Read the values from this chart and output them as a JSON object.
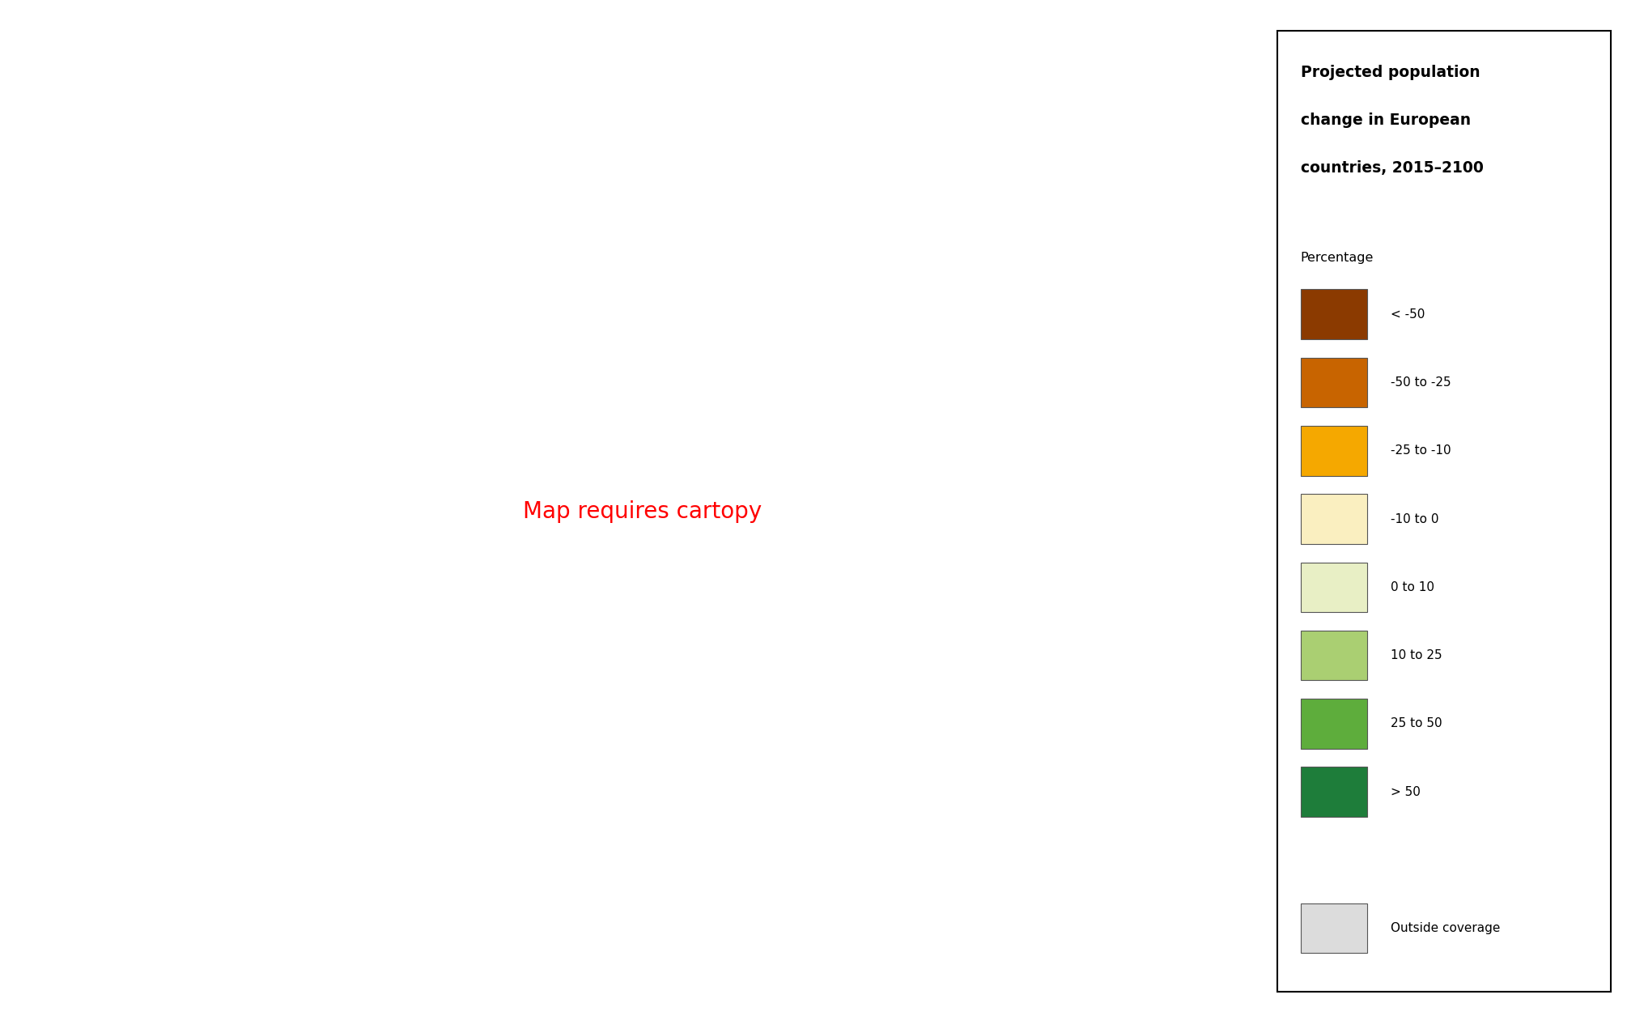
{
  "title_line1": "Projected population",
  "title_line2": "change in European",
  "title_line3": "countries, 2015–2100",
  "legend_title": "Percentage",
  "legend_categories": [
    {
      "label": "< -50",
      "color": "#8B3A00"
    },
    {
      "label": "-50 to -25",
      "color": "#C86400"
    },
    {
      "label": "-25 to -10",
      "color": "#F5A800"
    },
    {
      "label": "-10 to 0",
      "color": "#FAEFC0"
    },
    {
      "label": "0 to 10",
      "color": "#E8EFC5"
    },
    {
      "label": "10 to 25",
      "color": "#AACF72"
    },
    {
      "label": "25 to 50",
      "color": "#5EAD3C"
    },
    {
      "label": "> 50",
      "color": "#1E7D3A"
    }
  ],
  "outside_coverage_color": "#DCDCDC",
  "ocean_color": "#C8E8F0",
  "land_default_color": "#E8E8E8",
  "country_colors": {
    "Norway": "#1E7D3A",
    "Sweden": "#FAEFC0",
    "Finland": "#FAEFC0",
    "Iceland": "#AACF72",
    "Denmark": "#5EAD3C",
    "United Kingdom": "#5EAD3C",
    "Ireland": "#5EAD3C",
    "Netherlands": "#AACF72",
    "Belgium": "#AACF72",
    "Luxembourg": "#5EAD3C",
    "France": "#AACF72",
    "Germany": "#F5A800",
    "Switzerland": "#5EAD3C",
    "Austria": "#FAEFC0",
    "Portugal": "#8B3A00",
    "Spain": "#F5A800",
    "Italy": "#F5A800",
    "Malta": "#F5A800",
    "Poland": "#8B3A00",
    "Czechia": "#C86400",
    "Czech Republic": "#C86400",
    "Slovakia": "#C86400",
    "Hungary": "#C86400",
    "Romania": "#C86400",
    "Bulgaria": "#8B3A00",
    "Serbia": "#C86400",
    "Bosnia and Herz.": "#C86400",
    "Bosnia and Herzegovina": "#C86400",
    "Croatia": "#C86400",
    "Slovenia": "#5EAD3C",
    "Montenegro": "#C86400",
    "Albania": "#C86400",
    "North Macedonia": "#C86400",
    "Macedonia": "#C86400",
    "Greece": "#C86400",
    "Cyprus": "#F5A800",
    "Estonia": "#8B3A00",
    "Latvia": "#8B3A00",
    "Lithuania": "#8B3A00",
    "Belarus": "#DCDCDC",
    "Ukraine": "#DCDCDC",
    "Moldova": "#DCDCDC",
    "Russia": "#DCDCDC",
    "Turkey": "#AACF72",
    "Kosovo": "#C86400",
    "Andorra": "#F5A800",
    "San Marino": "#F5A800",
    "Liechtenstein": "#5EAD3C",
    "W. Sahara": "#DCDCDC",
    "Morocco": "#DCDCDC",
    "Algeria": "#DCDCDC",
    "Tunisia": "#DCDCDC",
    "Libya": "#DCDCDC",
    "Egypt": "#DCDCDC",
    "Syria": "#DCDCDC",
    "Iraq": "#DCDCDC",
    "Iran": "#DCDCDC",
    "Jordan": "#DCDCDC",
    "Lebanon": "#DCDCDC",
    "Israel": "#DCDCDC",
    "Saudi Arabia": "#DCDCDC",
    "Kazakhstan": "#DCDCDC",
    "Azerbaijan": "#DCDCDC",
    "Georgia": "#DCDCDC",
    "Armenia": "#DCDCDC"
  },
  "figsize": [
    20.1,
    12.76
  ],
  "dpi": 100
}
